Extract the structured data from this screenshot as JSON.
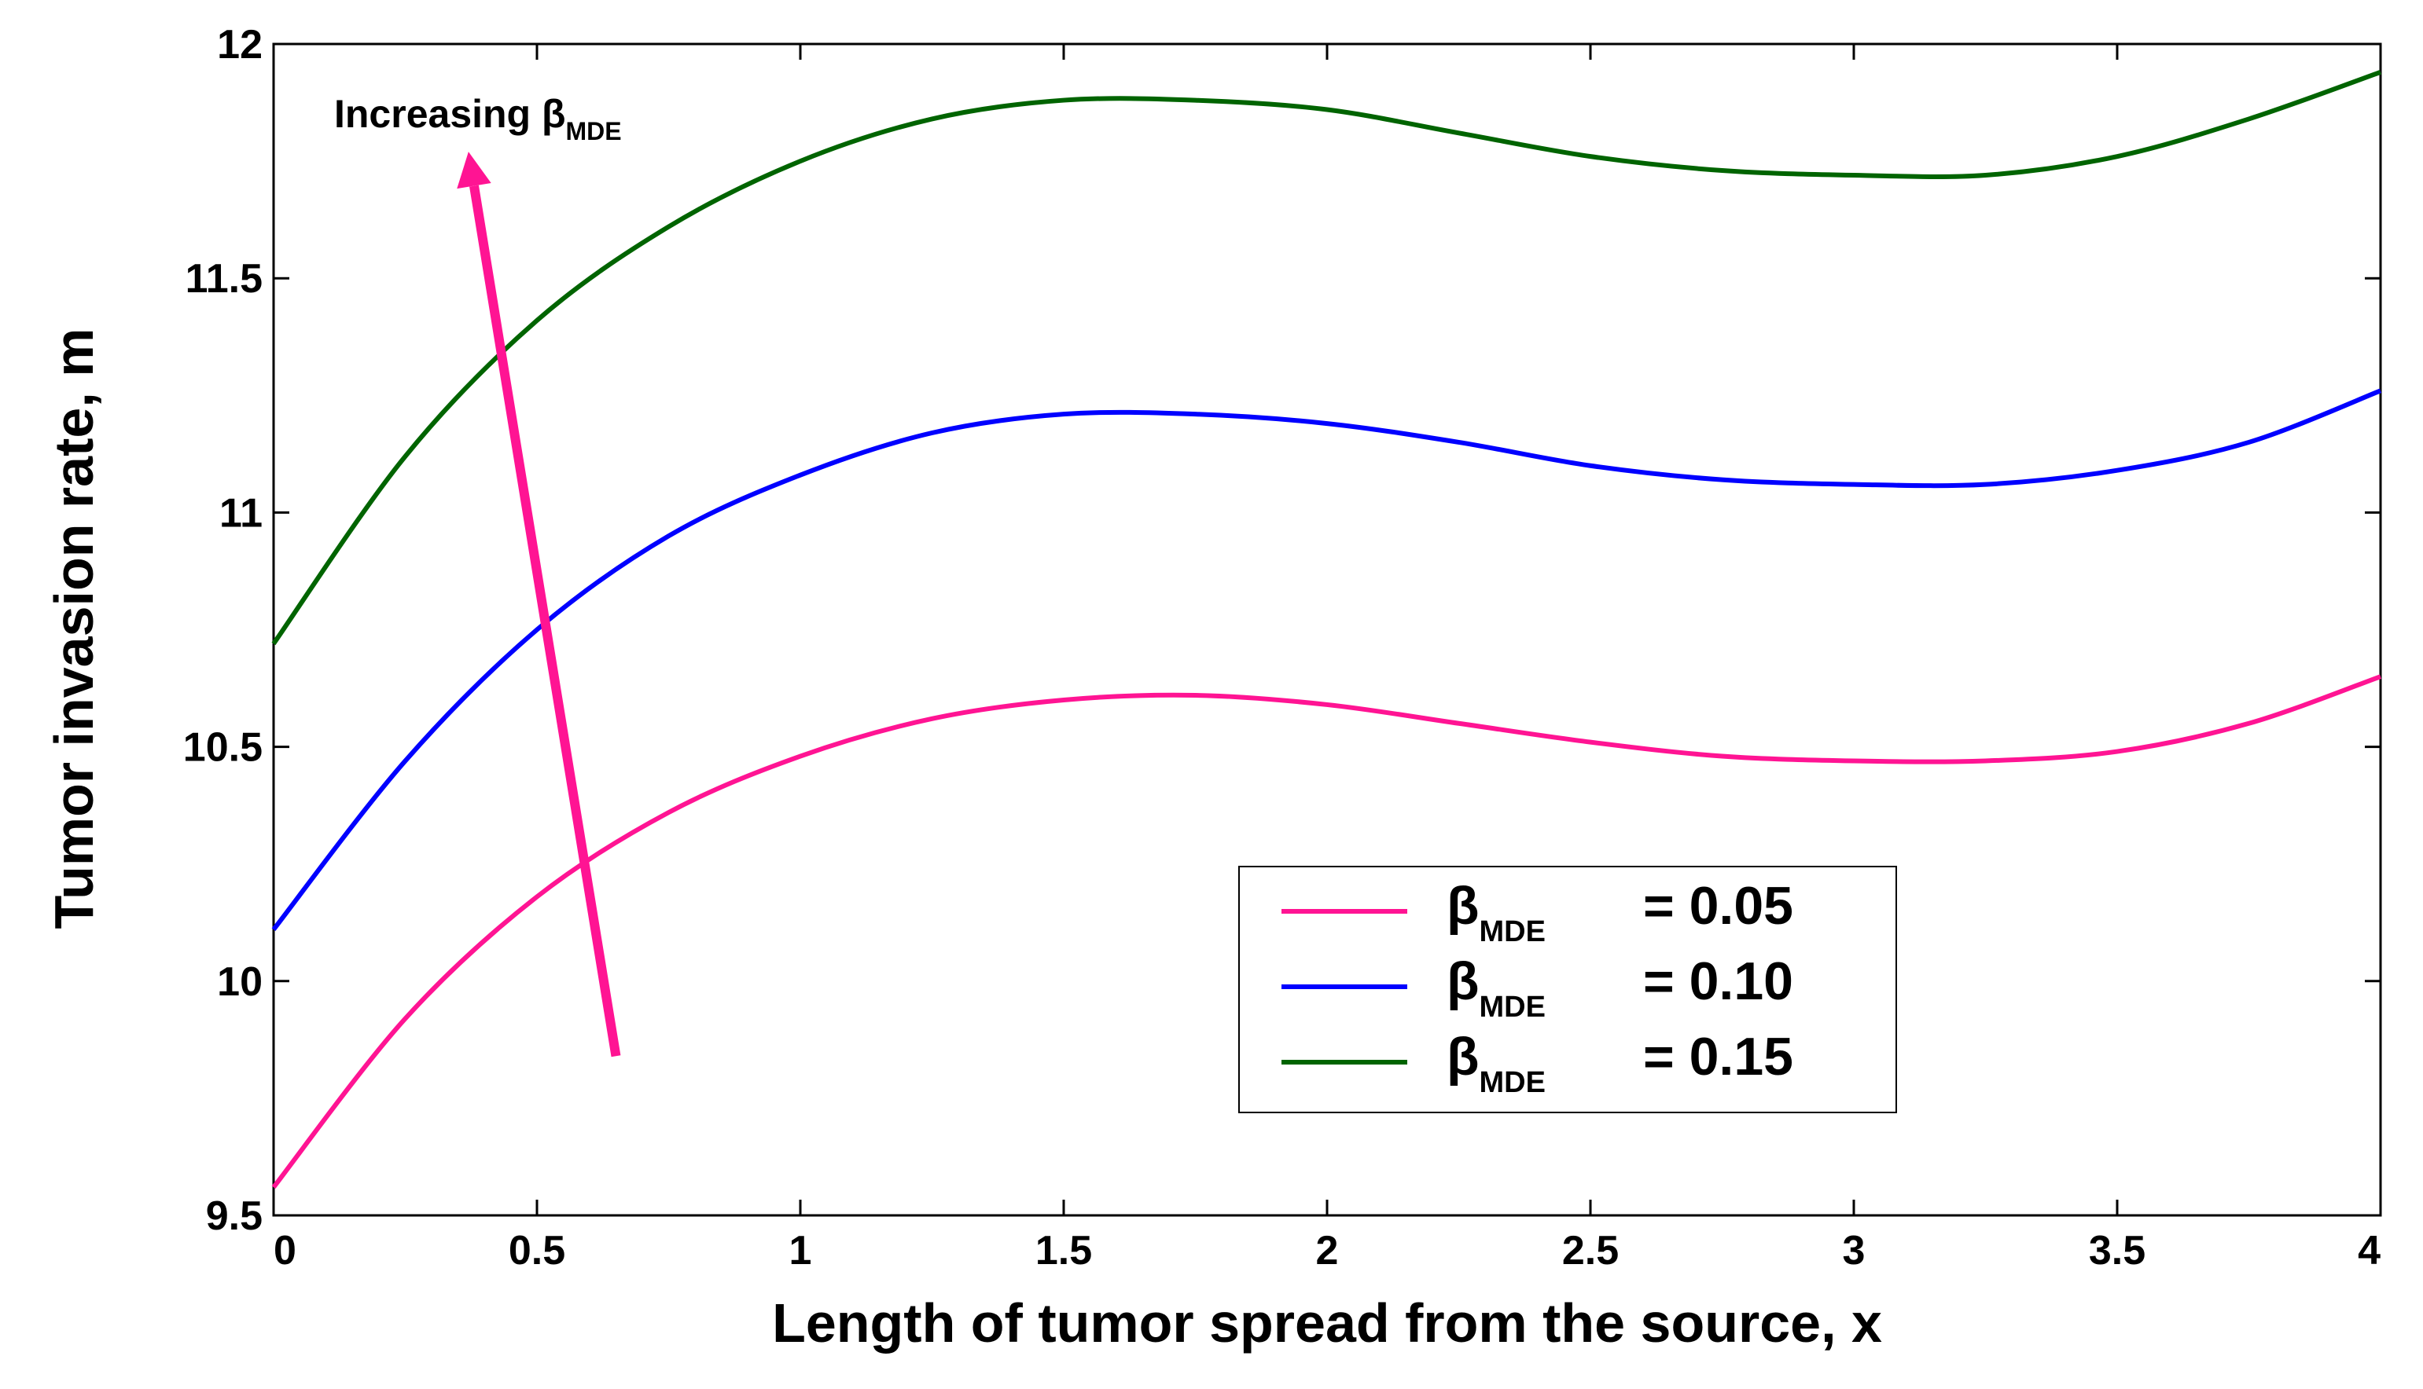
{
  "chart_data": {
    "type": "line",
    "xlabel": "Length of tumor spread from the source, x",
    "ylabel": "Tumor invasion rate, m",
    "xlim": [
      0,
      4
    ],
    "ylim": [
      9.5,
      12
    ],
    "x_ticks": [
      "0",
      "0.5",
      "1",
      "1.5",
      "2",
      "2.5",
      "3",
      "3.5",
      "4"
    ],
    "y_ticks": [
      "9.5",
      "10",
      "10.5",
      "11",
      "11.5",
      "12"
    ],
    "grid": false,
    "legend_position": "lower-right",
    "x": [
      0,
      0.25,
      0.5,
      0.75,
      1.0,
      1.25,
      1.5,
      1.75,
      2.0,
      2.25,
      2.5,
      2.75,
      3.0,
      3.25,
      3.5,
      3.75,
      4.0
    ],
    "series": [
      {
        "name": "β MDE = 0.05",
        "legend_symbol": "β",
        "legend_sub": "MDE",
        "legend_value": "= 0.05",
        "color": "#ff1493",
        "values": [
          9.56,
          9.92,
          10.18,
          10.36,
          10.48,
          10.56,
          10.6,
          10.61,
          10.59,
          10.55,
          10.51,
          10.48,
          10.47,
          10.47,
          10.49,
          10.55,
          10.65
        ]
      },
      {
        "name": "β MDE = 0.10",
        "legend_symbol": "β",
        "legend_sub": "MDE",
        "legend_value": "= 0.10",
        "color": "#0000ff",
        "values": [
          10.11,
          10.47,
          10.75,
          10.95,
          11.08,
          11.17,
          11.21,
          11.21,
          11.19,
          11.15,
          11.1,
          11.07,
          11.06,
          11.06,
          11.09,
          11.15,
          11.26
        ]
      },
      {
        "name": "β MDE = 0.15",
        "legend_symbol": "β",
        "legend_sub": "MDE",
        "legend_value": "= 0.15",
        "color": "#006400",
        "values": [
          10.72,
          11.12,
          11.41,
          11.61,
          11.75,
          11.84,
          11.88,
          11.88,
          11.86,
          11.81,
          11.76,
          11.73,
          11.72,
          11.72,
          11.76,
          11.84,
          11.94
        ]
      }
    ],
    "annotation": {
      "text": "Increasing β",
      "sub": "MDE",
      "arrow_color": "#ff1493",
      "arrow_from": [
        0.65,
        9.84
      ],
      "arrow_to": [
        0.37,
        11.77
      ]
    }
  }
}
